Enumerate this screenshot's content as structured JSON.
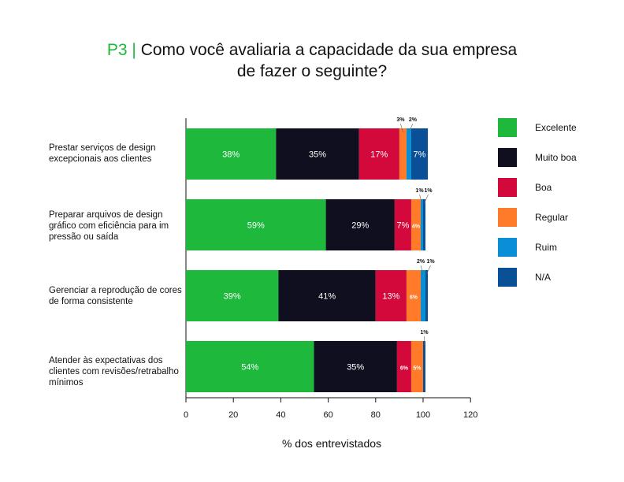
{
  "title_prefix": "P3 |",
  "title_line1": "Como você avaliaria a capacidade da sua empresa",
  "title_line2": "de fazer o seguinte?",
  "chart_data": {
    "type": "bar",
    "orientation": "horizontal-stacked",
    "categories": [
      "Prestar serviços de design excepcionais aos clientes",
      "Preparar arquivos de design gráfico com eficiência para im pressão ou saída",
      "Gerenciar a reprodução de cores de forma consistente",
      "Atender às expectativas dos clientes com revisões/retrabalho mínimos"
    ],
    "series": [
      {
        "name": "Excelente",
        "color": "#1db83c",
        "values": [
          38,
          59,
          39,
          54
        ]
      },
      {
        "name": "Muito boa",
        "color": "#0f0f1f",
        "values": [
          35,
          29,
          41,
          35
        ]
      },
      {
        "name": "Boa",
        "color": "#d4093b",
        "values": [
          17,
          7,
          13,
          6
        ]
      },
      {
        "name": "Regular",
        "color": "#ff7a29",
        "values": [
          3,
          4,
          6,
          5
        ]
      },
      {
        "name": "Ruim",
        "color": "#0a8fd6",
        "values": [
          2,
          1,
          2,
          0
        ]
      },
      {
        "name": "N/A",
        "color": "#0a5096",
        "values": [
          7,
          1,
          1,
          1
        ]
      }
    ],
    "xlabel": "% dos entrevistados",
    "xlim": [
      0,
      120
    ],
    "xticks": [
      0,
      20,
      40,
      60,
      80,
      100,
      120
    ],
    "grid": false,
    "legend": "right"
  }
}
